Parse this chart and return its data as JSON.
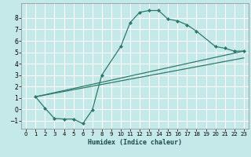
{
  "title": "",
  "xlabel": "Humidex (Indice chaleur)",
  "bg_color": "#c5e8e8",
  "grid_color": "#ffffff",
  "line_color": "#2d7a6a",
  "xlim": [
    -0.5,
    23.5
  ],
  "ylim": [
    -1.7,
    9.3
  ],
  "xticks": [
    0,
    1,
    2,
    3,
    4,
    5,
    6,
    7,
    8,
    9,
    10,
    11,
    12,
    13,
    14,
    15,
    16,
    17,
    18,
    19,
    20,
    21,
    22,
    23
  ],
  "yticks": [
    -1,
    0,
    1,
    2,
    3,
    4,
    5,
    6,
    7,
    8
  ],
  "curve1_x": [
    1,
    2,
    3,
    4,
    5,
    6,
    7,
    8,
    10,
    11,
    12,
    13,
    14,
    15,
    16,
    17,
    18,
    20,
    21,
    22,
    23
  ],
  "curve1_y": [
    1.1,
    0.1,
    -0.8,
    -0.85,
    -0.85,
    -1.25,
    -0.05,
    3.0,
    5.5,
    7.6,
    8.5,
    8.65,
    8.65,
    7.9,
    7.75,
    7.4,
    6.85,
    5.5,
    5.35,
    5.1,
    5.1
  ],
  "line2_x": [
    1,
    23
  ],
  "line2_y": [
    1.1,
    5.1
  ],
  "line3_x": [
    1,
    23
  ],
  "line3_y": [
    1.1,
    4.5
  ]
}
